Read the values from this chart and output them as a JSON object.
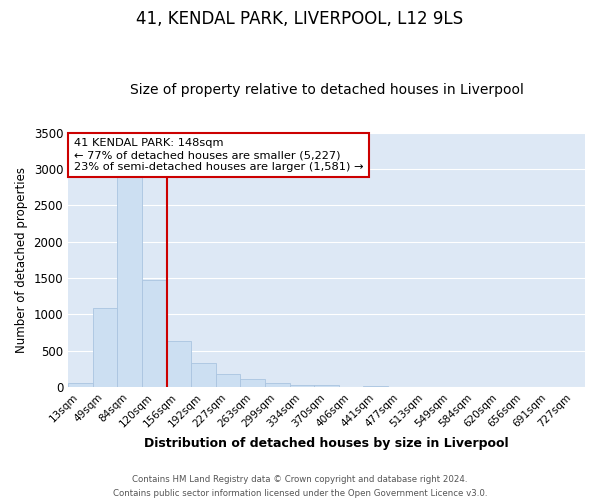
{
  "title": "41, KENDAL PARK, LIVERPOOL, L12 9LS",
  "subtitle": "Size of property relative to detached houses in Liverpool",
  "xlabel": "Distribution of detached houses by size in Liverpool",
  "ylabel": "Number of detached properties",
  "footer_line1": "Contains HM Land Registry data © Crown copyright and database right 2024.",
  "footer_line2": "Contains public sector information licensed under the Open Government Licence v3.0.",
  "bar_labels": [
    "13sqm",
    "49sqm",
    "84sqm",
    "120sqm",
    "156sqm",
    "192sqm",
    "227sqm",
    "263sqm",
    "299sqm",
    "334sqm",
    "370sqm",
    "406sqm",
    "441sqm",
    "477sqm",
    "513sqm",
    "549sqm",
    "584sqm",
    "620sqm",
    "656sqm",
    "691sqm",
    "727sqm"
  ],
  "bar_values": [
    50,
    1090,
    2900,
    1480,
    630,
    330,
    185,
    105,
    60,
    20,
    30,
    0,
    15,
    0,
    0,
    0,
    0,
    0,
    0,
    0,
    0
  ],
  "bar_color": "#ccdff2",
  "bar_edgecolor": "#aac4e0",
  "vline_color": "#cc0000",
  "vline_pos": 3.5,
  "ylim": [
    0,
    3500
  ],
  "yticks": [
    0,
    500,
    1000,
    1500,
    2000,
    2500,
    3000,
    3500
  ],
  "annotation_title": "41 KENDAL PARK: 148sqm",
  "annotation_line1": "← 77% of detached houses are smaller (5,227)",
  "annotation_line2": "23% of semi-detached houses are larger (1,581) →",
  "annotation_box_facecolor": "#ffffff",
  "annotation_box_edgecolor": "#cc0000",
  "title_fontsize": 12,
  "subtitle_fontsize": 10,
  "bg_color": "#dde8f5",
  "grid_color": "#ffffff"
}
